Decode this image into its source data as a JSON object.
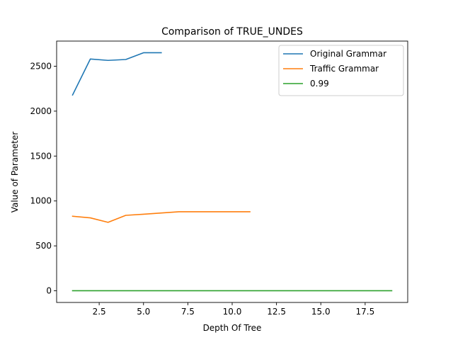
{
  "chart_data": {
    "type": "line",
    "title": "Comparison of TRUE_UNDES",
    "xlabel": "Depth Of Tree",
    "ylabel": "Value of Parameter",
    "xlim": [
      0.1,
      19.9
    ],
    "ylim": [
      -130,
      2780
    ],
    "xticks": [
      2.5,
      5.0,
      7.5,
      10.0,
      12.5,
      15.0,
      17.5
    ],
    "xtick_labels": [
      "2.5",
      "5.0",
      "7.5",
      "10.0",
      "12.5",
      "15.0",
      "17.5"
    ],
    "yticks": [
      0,
      500,
      1000,
      1500,
      2000,
      2500
    ],
    "ytick_labels": [
      "0",
      "500",
      "1000",
      "1500",
      "2000",
      "2500"
    ],
    "grid": false,
    "legend_position": "top-right",
    "series": [
      {
        "name": "Original Grammar",
        "color": "#1f77b4",
        "x": [
          1,
          2,
          3,
          4,
          5,
          6
        ],
        "y": [
          2180,
          2580,
          2565,
          2575,
          2650,
          2650
        ]
      },
      {
        "name": "Traffic Grammar",
        "color": "#ff7f0e",
        "x": [
          1,
          2,
          3,
          4,
          5,
          6,
          7,
          8,
          9,
          10,
          11
        ],
        "y": [
          830,
          812,
          762,
          840,
          852,
          866,
          880,
          880,
          880,
          880,
          880
        ]
      },
      {
        "name": "0.99",
        "color": "#2ca02c",
        "x": [
          1,
          2,
          3,
          4,
          5,
          6,
          7,
          8,
          9,
          10,
          11,
          12,
          13,
          14,
          15,
          16,
          17,
          18,
          19
        ],
        "y": [
          0.99,
          0.99,
          0.99,
          0.99,
          0.99,
          0.99,
          0.99,
          0.99,
          0.99,
          0.99,
          0.99,
          0.99,
          0.99,
          0.99,
          0.99,
          0.99,
          0.99,
          0.99,
          0.99
        ]
      }
    ]
  }
}
